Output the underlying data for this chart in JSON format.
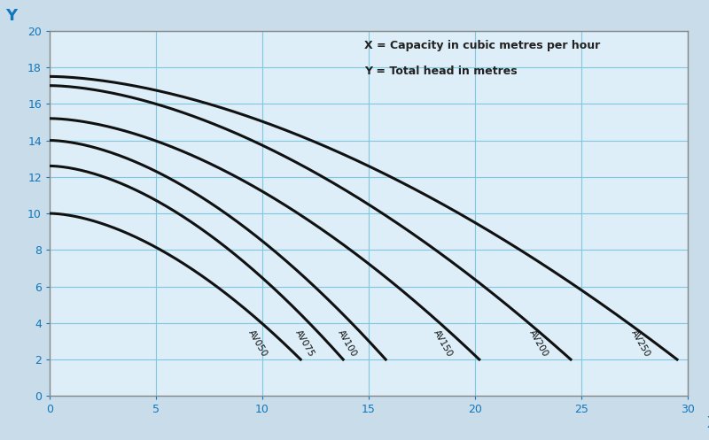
{
  "curves": [
    {
      "label": "AV050",
      "start_y": 10.0,
      "end_x": 11.8,
      "color": "#111111",
      "lw": 2.2
    },
    {
      "label": "AV075",
      "start_y": 12.6,
      "end_x": 13.8,
      "color": "#111111",
      "lw": 2.2
    },
    {
      "label": "AV100",
      "start_y": 14.0,
      "end_x": 15.8,
      "color": "#111111",
      "lw": 2.2
    },
    {
      "label": "AV150",
      "start_y": 15.2,
      "end_x": 20.2,
      "color": "#111111",
      "lw": 2.2
    },
    {
      "label": "AV200",
      "start_y": 17.0,
      "end_x": 24.5,
      "color": "#111111",
      "lw": 2.2
    },
    {
      "label": "AV250",
      "start_y": 17.5,
      "end_x": 29.5,
      "color": "#111111",
      "lw": 2.2
    }
  ],
  "xlim": [
    0,
    30
  ],
  "ylim": [
    0,
    20
  ],
  "xticks": [
    0,
    5,
    10,
    15,
    20,
    25,
    30
  ],
  "yticks": [
    0,
    2,
    4,
    6,
    8,
    10,
    12,
    14,
    16,
    18,
    20
  ],
  "grid_color": "#80c8e0",
  "bg_color": "#ddeef8",
  "fig_color": "#c8dcea",
  "axis_label_color": "#1177bb",
  "tick_color": "#1177bb",
  "annotation_text_x": "X = Capacity in cubic metres per hour",
  "annotation_text_y": "Y = Total head in metres",
  "xlabel_text": "X",
  "ylabel_text": "Y",
  "end_y": 2.0,
  "label_positions": {
    "AV050": [
      9.8,
      2.9,
      -60
    ],
    "AV075": [
      12.0,
      2.9,
      -60
    ],
    "AV100": [
      14.0,
      2.9,
      -60
    ],
    "AV150": [
      18.5,
      2.9,
      -60
    ],
    "AV200": [
      23.0,
      2.9,
      -60
    ],
    "AV250": [
      27.8,
      2.9,
      -60
    ]
  }
}
